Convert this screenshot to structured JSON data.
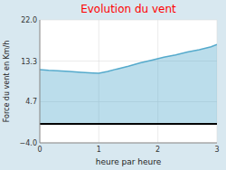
{
  "chart_data": {
    "type": "area",
    "title": "Evolution du vent",
    "x_label": "heure par heure",
    "y_label": "Force du vent en Km/h",
    "x": [
      0,
      0.15,
      0.3,
      0.5,
      0.7,
      0.9,
      1.0,
      1.15,
      1.3,
      1.5,
      1.7,
      1.9,
      2.1,
      2.3,
      2.5,
      2.7,
      2.9,
      3.0
    ],
    "values": [
      11.5,
      11.35,
      11.25,
      11.1,
      10.9,
      10.75,
      10.7,
      11.1,
      11.6,
      12.2,
      12.9,
      13.5,
      14.1,
      14.6,
      15.2,
      15.7,
      16.3,
      16.8
    ],
    "baseline": 0.0,
    "color": "#55aacc",
    "xlim": [
      0,
      3
    ],
    "ylim": [
      -4.0,
      22.0
    ],
    "xticks": [
      0,
      1,
      2,
      3
    ],
    "yticks": [
      {
        "value": -4.0,
        "label": "−4.0"
      },
      4.7,
      13.3,
      {
        "value": 22.0,
        "label": "22.0"
      }
    ],
    "grid": true
  }
}
